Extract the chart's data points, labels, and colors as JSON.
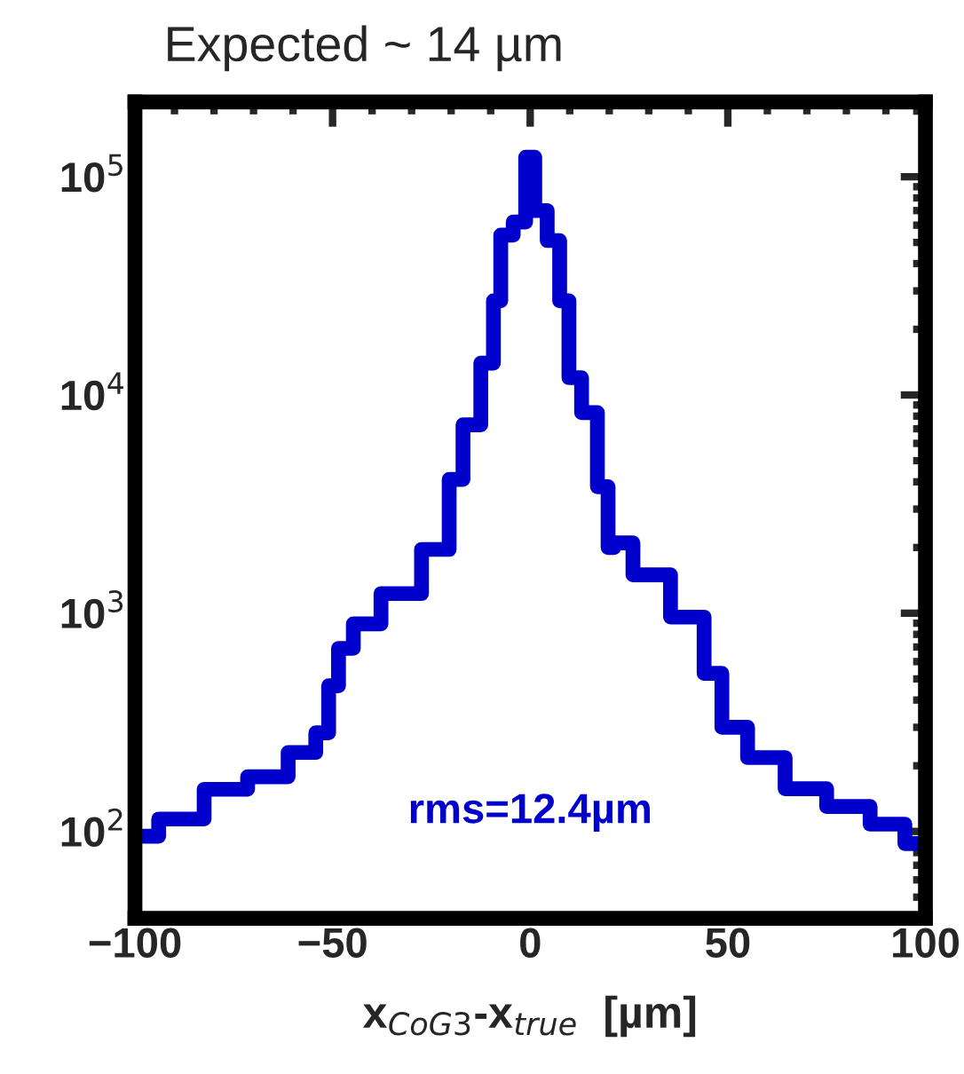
{
  "chart_data": {
    "type": "step",
    "title": "Expected ~ 14 µm",
    "xlabel": "x$_{CoG3}$-x$_{true}$  [µm]",
    "annotations": [
      "rms=12.4µm"
    ],
    "x": [
      -100,
      -88,
      -77,
      -66,
      -56.5,
      -52,
      -50,
      -47,
      -42.5,
      -33,
      -22,
      -19,
      -15,
      -10,
      -8.6,
      -6.3,
      -2.3,
      0,
      2.3,
      6.3,
      8.6,
      11,
      15,
      19,
      20.4,
      22,
      30,
      41,
      47,
      50,
      60,
      69,
      81,
      91,
      98.6
    ],
    "series": [
      {
        "color": "#0000cc",
        "values": [
          95,
          114,
          156,
          178,
          230,
          283,
          465,
          690,
          894,
          1230,
          1960,
          4100,
          7300,
          14000,
          27000,
          54000,
          62000,
          123000,
          70000,
          51000,
          27000,
          12000,
          8300,
          3800,
          2000,
          2100,
          1500,
          960,
          530,
          300,
          218,
          157,
          130,
          108,
          88
        ]
      }
    ],
    "log": "y",
    "xlim": [
      -100,
      100
    ],
    "ylim": [
      40,
      220000
    ],
    "xticks": [
      {
        "value": -100,
        "label": "−100"
      },
      {
        "value": -50,
        "label": "−50"
      },
      0,
      50,
      100
    ],
    "yticks": [
      {
        "value": 100,
        "label": "10$^{2}$"
      },
      {
        "value": 1000,
        "label": "10$^{3}$"
      },
      {
        "value": 10000,
        "label": "10$^{4}$"
      },
      {
        "value": 100000,
        "label": "10$^{5}$"
      }
    ],
    "grid": false
  }
}
